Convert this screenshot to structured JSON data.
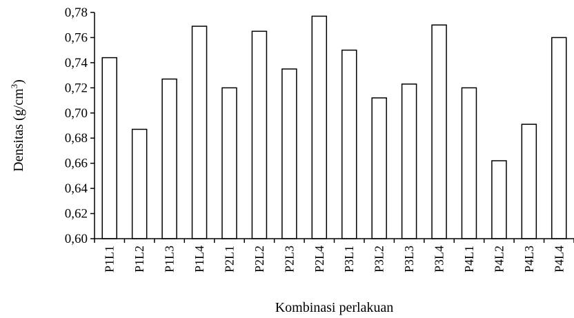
{
  "chart_data": {
    "type": "bar",
    "title": "",
    "xlabel": "Kombinasi perlakuan",
    "ylabel": "Densitas (g/cm",
    "ylabel_sup": "3",
    "ylabel_close": ")",
    "ylim": [
      0.6,
      0.78
    ],
    "y_ticks": [
      "0,60",
      "0,62",
      "0,64",
      "0,66",
      "0,68",
      "0,70",
      "0,72",
      "0,74",
      "0,76",
      "0,78"
    ],
    "categories": [
      "P1L1",
      "P1L2",
      "P1L3",
      "P1L4",
      "P2L1",
      "P2L2",
      "P2L3",
      "P2L4",
      "P3L1",
      "P3L2",
      "P3L3",
      "P3L4",
      "P4L1",
      "P4L2",
      "P4L3",
      "P4L4"
    ],
    "values": [
      0.744,
      0.687,
      0.727,
      0.769,
      0.72,
      0.765,
      0.735,
      0.777,
      0.75,
      0.712,
      0.723,
      0.77,
      0.72,
      0.662,
      0.691,
      0.76
    ],
    "bar_fill": "#ffffff",
    "bar_stroke": "#000000",
    "grid": false,
    "legend": "none"
  }
}
